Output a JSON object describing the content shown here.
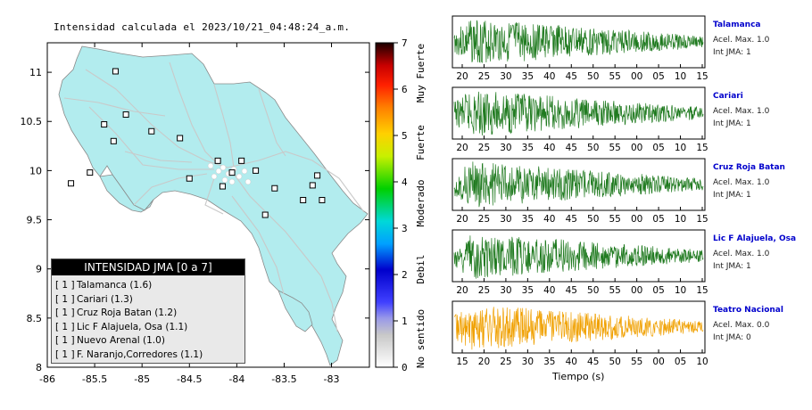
{
  "colors": {
    "land": "#b2ecee",
    "road": "#c9c9c9",
    "border": "#7a7a7a",
    "station_fill": "#ffffff",
    "trace_green": "#1f7a1f",
    "trace_orange": "#f0a000",
    "station_link": "#0000cc"
  },
  "map": {
    "title": "Intensidad calculada el 2023/10/21_04:48:24_a.m.",
    "x_ticks": [
      "-86",
      "-85.5",
      "-85",
      "-84.5",
      "-84",
      "-83.5",
      "-83"
    ],
    "y_ticks": [
      "11",
      "10.5",
      "10",
      "9.5",
      "9",
      "8.5",
      "8"
    ]
  },
  "legend": {
    "title": "INTENSIDAD JMA [0 a 7]",
    "items": [
      {
        "bullet": "[ 1 ]",
        "text": "Talamanca (1.6)"
      },
      {
        "bullet": "[ 1 ]",
        "text": "Cariari (1.3)"
      },
      {
        "bullet": "[ 1 ]",
        "text": "Cruz Roja Batan (1.2)"
      },
      {
        "bullet": "[ 1 ]",
        "text": "Lic F Alajuela, Osa (1.1)"
      },
      {
        "bullet": "[ 1 ]",
        "text": "Nuevo Arenal (1.0)"
      },
      {
        "bullet": "[ 1 ]",
        "text": "F. Naranjo,Corredores (1.1)"
      }
    ]
  },
  "colorbar": {
    "ticks": [
      "0",
      "1",
      "2",
      "3",
      "4",
      "5",
      "6",
      "7"
    ],
    "categories": [
      "No sentido",
      "Debil",
      "Moderado",
      "Fuerte",
      "Muy Fuerte"
    ]
  },
  "traces": {
    "xlabel": "Tiempo (s)",
    "panels": [
      {
        "station": "Talamanca",
        "acel": "Acel. Max. 1.0",
        "jma": "Int JMA: 1",
        "ticks": [
          "20",
          "25",
          "30",
          "35",
          "40",
          "45",
          "50",
          "55",
          "00",
          "05",
          "10",
          "15"
        ],
        "color": "green"
      },
      {
        "station": "Cariari",
        "acel": "Acel. Max. 1.0",
        "jma": "Int JMA: 1",
        "ticks": [
          "20",
          "25",
          "30",
          "35",
          "40",
          "45",
          "50",
          "55",
          "00",
          "05",
          "10",
          "15"
        ],
        "color": "green"
      },
      {
        "station": "Cruz Roja Batan",
        "acel": "Acel. Max. 1.0",
        "jma": "Int JMA: 1",
        "ticks": [
          "20",
          "25",
          "30",
          "35",
          "40",
          "45",
          "50",
          "55",
          "00",
          "05",
          "10",
          "15"
        ],
        "color": "green"
      },
      {
        "station": "Lic F Alajuela, Osa",
        "acel": "Acel. Max. 1.0",
        "jma": "Int JMA: 1",
        "ticks": [
          "20",
          "25",
          "30",
          "35",
          "40",
          "45",
          "50",
          "55",
          "00",
          "05",
          "10",
          "15"
        ],
        "color": "green"
      },
      {
        "station": "Teatro Nacional",
        "acel": "Acel. Max. 0.0",
        "jma": "Int JMA: 0",
        "ticks": [
          "15",
          "20",
          "25",
          "30",
          "35",
          "40",
          "45",
          "50",
          "55",
          "00",
          "05",
          "10"
        ],
        "color": "orange"
      }
    ]
  },
  "chart_data": [
    {
      "type": "scatter",
      "title": "Intensidad calculada el 2023/10/21_04:48:24_a.m.",
      "xlabel": "",
      "ylabel": "",
      "xlim": [
        -86,
        -82.6
      ],
      "ylim": [
        8,
        11.3
      ],
      "x_ticks": [
        -86,
        -85.5,
        -85,
        -84.5,
        -84,
        -83.5,
        -83
      ],
      "y_ticks": [
        8,
        8.5,
        9,
        9.5,
        10,
        10.5,
        11
      ],
      "legend_placement": "bottom-left",
      "series": [
        {
          "name": "",
          "x": [
            -85.28,
            -85.17,
            -85.4,
            -85.3,
            -84.9,
            -84.6,
            -84.5,
            -84.15,
            -84.05,
            -83.95,
            -83.8,
            -83.6,
            -83.3,
            -83.2,
            -83.15,
            -83.7,
            -85.55,
            -85.75,
            -84.2,
            -83.1
          ],
          "y": [
            11.01,
            10.57,
            10.47,
            10.3,
            10.4,
            10.33,
            9.92,
            9.84,
            9.98,
            10.1,
            10.0,
            9.82,
            9.7,
            9.85,
            9.95,
            9.55,
            9.98,
            9.87,
            10.1,
            9.7
          ]
        }
      ]
    },
    {
      "type": "heatmap",
      "title": "",
      "ylabel": "",
      "ylim": [
        0,
        7
      ],
      "y_ticks": [
        0,
        1,
        2,
        3,
        4,
        5,
        6,
        7
      ],
      "categories": [
        "No sentido",
        "Debil",
        "Moderado",
        "Fuerte",
        "Muy Fuerte"
      ]
    },
    {
      "type": "line",
      "title": "",
      "xlabel": "Tiempo (s)",
      "series": [
        {
          "name": "Talamanca",
          "x_ticks": [
            "20",
            "25",
            "30",
            "35",
            "40",
            "45",
            "50",
            "55",
            "00",
            "05",
            "10",
            "15"
          ]
        },
        {
          "name": "Cariari",
          "x_ticks": [
            "20",
            "25",
            "30",
            "35",
            "40",
            "45",
            "50",
            "55",
            "00",
            "05",
            "10",
            "15"
          ]
        },
        {
          "name": "Cruz Roja Batan",
          "x_ticks": [
            "20",
            "25",
            "30",
            "35",
            "40",
            "45",
            "50",
            "55",
            "00",
            "05",
            "10",
            "15"
          ]
        },
        {
          "name": "Lic F Alajuela, Osa",
          "x_ticks": [
            "20",
            "25",
            "30",
            "35",
            "40",
            "45",
            "50",
            "55",
            "00",
            "05",
            "10",
            "15"
          ]
        },
        {
          "name": "Teatro Nacional",
          "x_ticks": [
            "15",
            "20",
            "25",
            "30",
            "35",
            "40",
            "45",
            "50",
            "55",
            "00",
            "05",
            "10"
          ]
        }
      ]
    }
  ]
}
